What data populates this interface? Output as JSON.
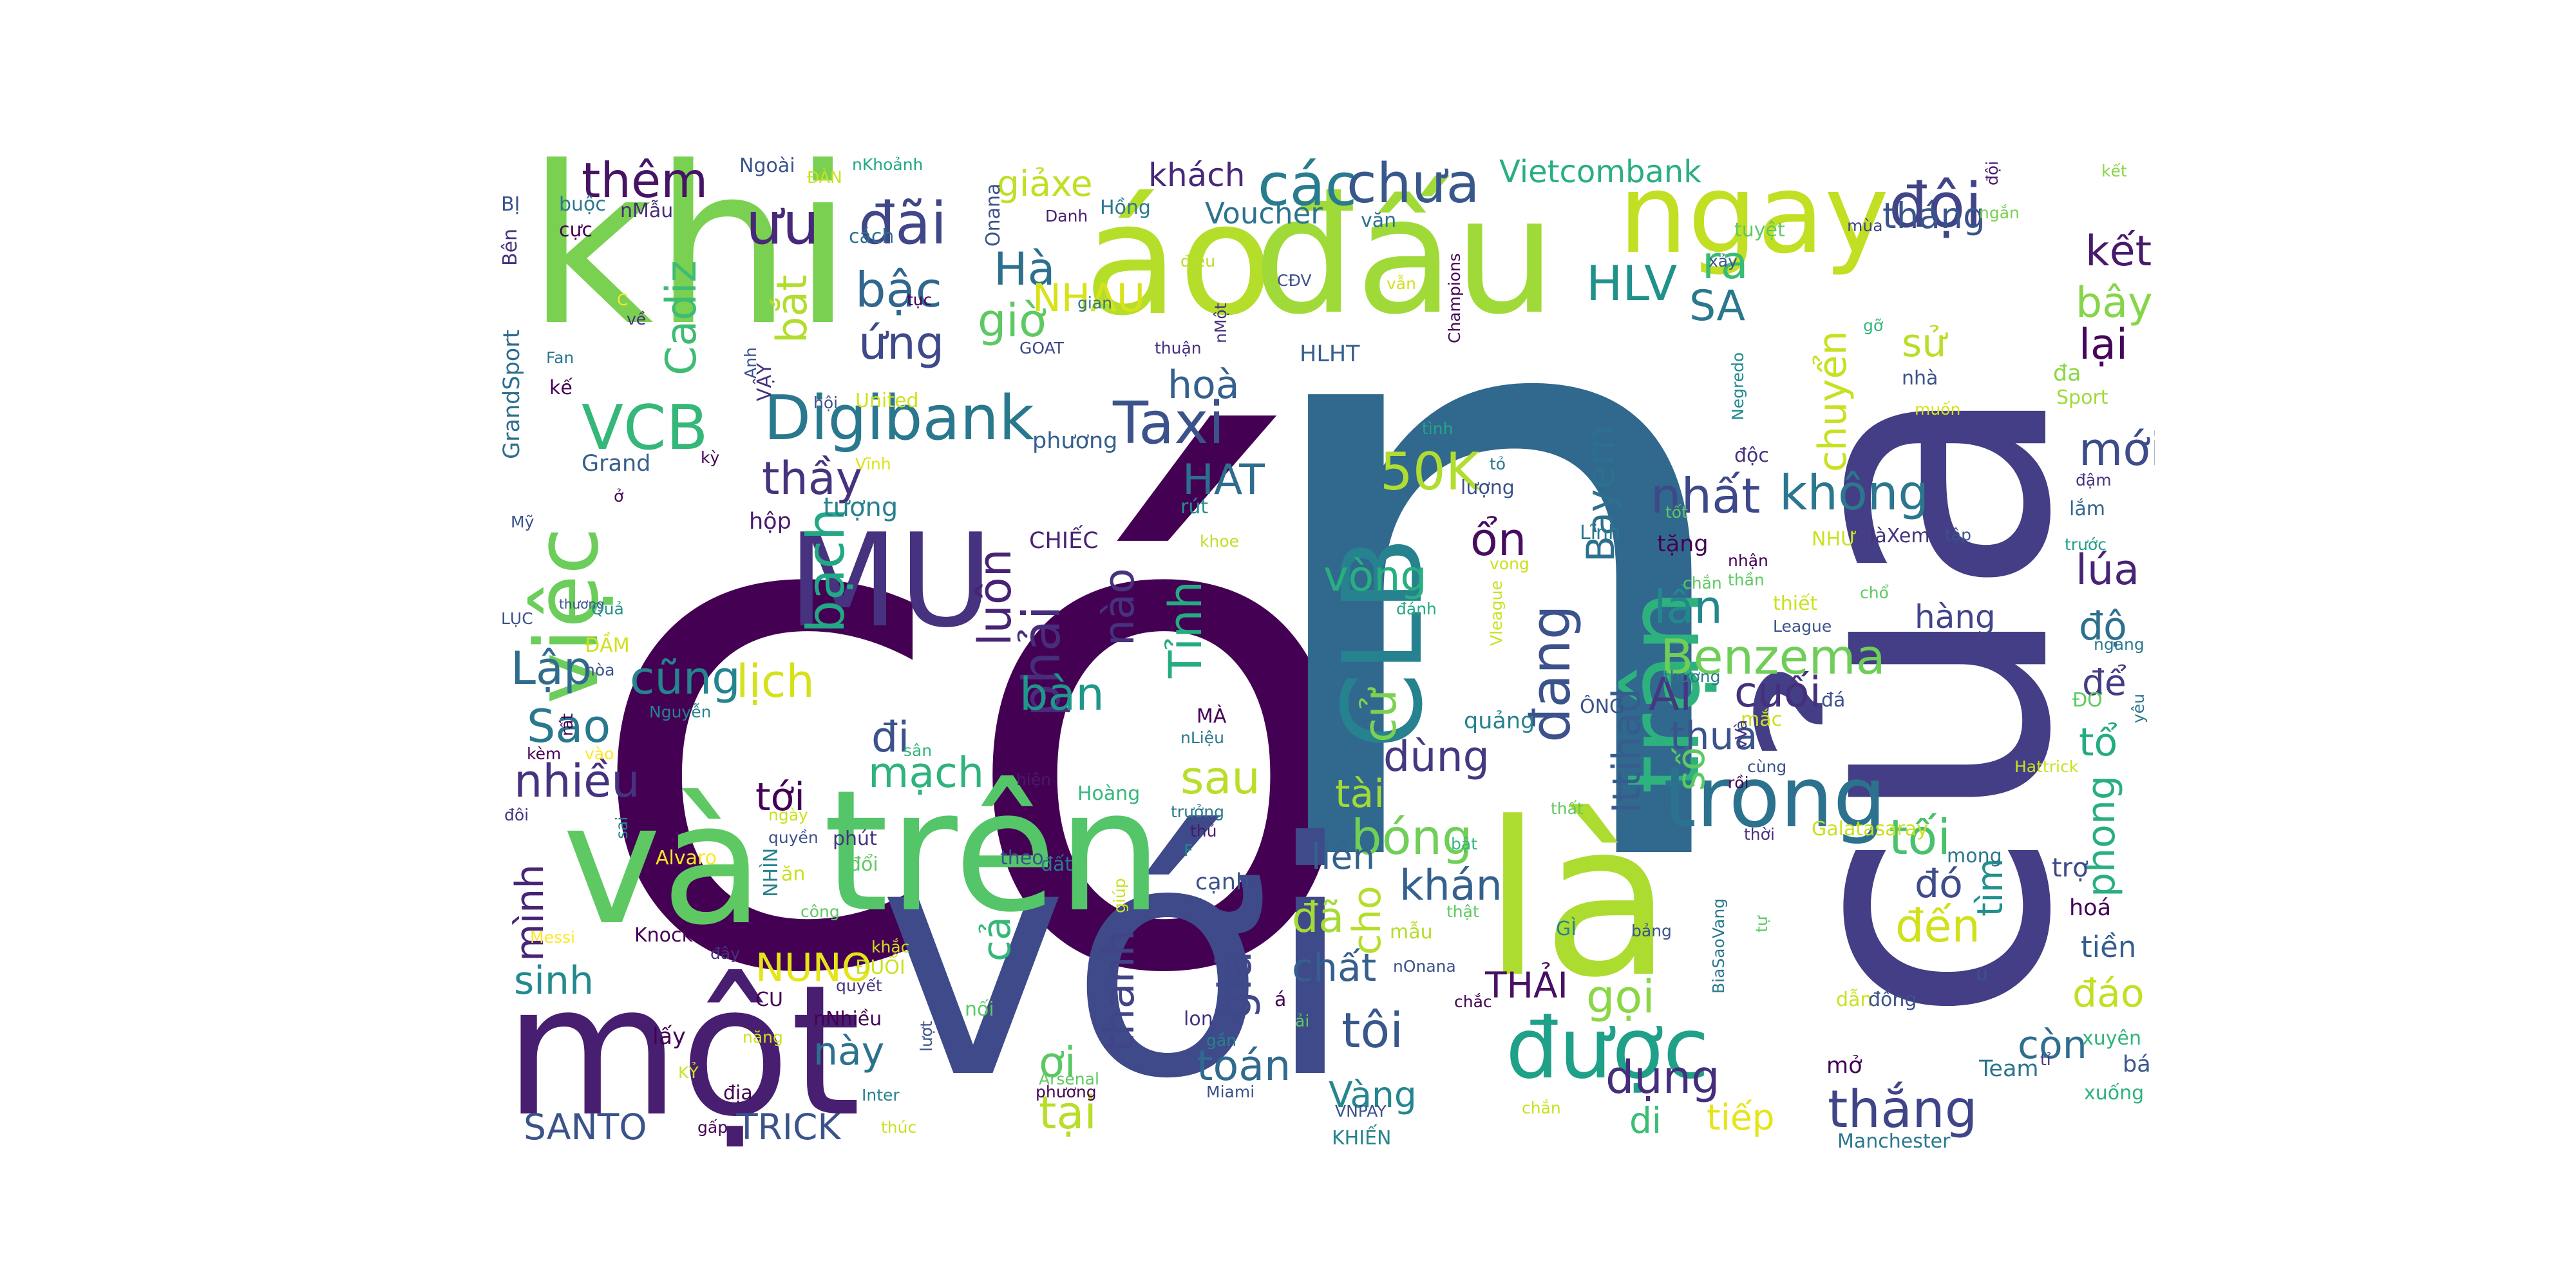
{
  "words": [
    {
      "text": "có",
      "color": "#440154"
    },
    {
      "text": "n",
      "color": "#31688e"
    },
    {
      "text": "với",
      "color": "#3e4a89"
    },
    {
      "text": "của",
      "color": "#433e85"
    },
    {
      "text": "khi",
      "color": "#7ad151"
    },
    {
      "text": "áo",
      "color": "#b5de2b"
    },
    {
      "text": "đấu",
      "color": "#a0da39"
    },
    {
      "text": "ngay",
      "color": "#c2df23"
    },
    {
      "text": "một",
      "color": "#481f70"
    },
    {
      "text": "và",
      "color": "#5ec962"
    },
    {
      "text": "trên",
      "color": "#54c568"
    },
    {
      "text": "là",
      "color": "#addc30"
    },
    {
      "text": "MU",
      "color": "#46327e"
    },
    {
      "text": "CLB",
      "color": "#26828e"
    },
    {
      "text": "trận",
      "color": "#2db27d"
    },
    {
      "text": "trong",
      "color": "#2c728e"
    },
    {
      "text": "được",
      "color": "#1fa088"
    },
    {
      "text": "việc",
      "color": "#6ccd5a"
    },
    {
      "text": "Digibank",
      "color": "#2a788e"
    },
    {
      "text": "VCB",
      "color": "#35b779"
    },
    {
      "text": "Taxi",
      "color": "#3b528b"
    },
    {
      "text": "các",
      "color": "#287c8e"
    },
    {
      "text": "chưa",
      "color": "#38588c"
    },
    {
      "text": "đội",
      "color": "#414487"
    },
    {
      "text": "HLV",
      "color": "#21918c"
    },
    {
      "text": "ưu",
      "color": "#482878"
    },
    {
      "text": "đãi",
      "color": "#3f4788"
    },
    {
      "text": "thêm",
      "color": "#471365"
    },
    {
      "text": "bậc",
      "color": "#31678e"
    },
    {
      "text": "ứng",
      "color": "#3e4989"
    },
    {
      "text": "Hà",
      "color": "#2e6f8e"
    },
    {
      "text": "giờ",
      "color": "#5ec962"
    },
    {
      "text": "Cadiz",
      "color": "#3fbc73"
    },
    {
      "text": "bắt",
      "color": "#b2dd2d"
    },
    {
      "text": "NHAU",
      "color": "#d8e219"
    },
    {
      "text": "50K",
      "color": "#b0dd2f"
    },
    {
      "text": "HAT",
      "color": "#2e6e8e"
    },
    {
      "text": "hoà",
      "color": "#355f8d"
    },
    {
      "text": "thầy",
      "color": "#46337e"
    },
    {
      "text": "Lập",
      "color": "#2f6c8e"
    },
    {
      "text": "Sao",
      "color": "#2a788e"
    },
    {
      "text": "cũng",
      "color": "#25848e"
    },
    {
      "text": "lịch",
      "color": "#d5e21a"
    },
    {
      "text": "bạch",
      "color": "#22a884"
    },
    {
      "text": "luôn",
      "color": "#482374"
    },
    {
      "text": "phải",
      "color": "#472d7b"
    },
    {
      "text": "nào",
      "color": "#4e02bb"
    },
    {
      "text": "bàn",
      "color": "#1f978b"
    },
    {
      "text": "Tỉnh",
      "color": "#25ab82"
    },
    {
      "text": "vòng",
      "color": "#29af7f"
    },
    {
      "text": "cử",
      "color": "#7cd250"
    },
    {
      "text": "đang",
      "color": "#3b528b"
    },
    {
      "text": "Benzema",
      "color": "#6ece58"
    },
    {
      "text": "lần",
      "color": "#23888e"
    },
    {
      "text": "nhất",
      "color": "#3e4989"
    },
    {
      "text": "không",
      "color": "#2a778e"
    },
    {
      "text": "Bayern",
      "color": "#2d708e"
    },
    {
      "text": "chuyển",
      "color": "#c8e020"
    },
    {
      "text": "lúa",
      "color": "#482475"
    },
    {
      "text": "kết",
      "color": "#481a6c"
    },
    {
      "text": "bây",
      "color": "#86d549"
    },
    {
      "text": "lại",
      "color": "#450559"
    },
    {
      "text": "mới",
      "color": "#3e4c8a"
    },
    {
      "text": "sử",
      "color": "#b8de29"
    },
    {
      "text": "SA",
      "color": "#2a778e"
    },
    {
      "text": "ra",
      "color": "#3bbb75"
    },
    {
      "text": "tháng",
      "color": "#3a548c"
    },
    {
      "text": "Voucher",
      "color": "#2c738e"
    },
    {
      "text": "khách",
      "color": "#482878"
    },
    {
      "text": "Vietcombank",
      "color": "#29af7f"
    },
    {
      "text": "giảxe",
      "color": "#c0df25"
    },
    {
      "text": "Al",
      "color": "#453781"
    },
    {
      "text": "cuối",
      "color": "#46307e"
    },
    {
      "text": "thua",
      "color": "#3a548c"
    },
    {
      "text": "Ittihad",
      "color": "#365c8d"
    },
    {
      "text": "số",
      "color": "#5cc863"
    },
    {
      "text": "tối",
      "color": "#4ac16d"
    },
    {
      "text": "đó",
      "color": "#3e4c8a"
    },
    {
      "text": "đến",
      "color": "#d0e11c"
    },
    {
      "text": "tìm",
      "color": "#21918c"
    },
    {
      "text": "phong",
      "color": "#29af7f"
    },
    {
      "text": "tổ",
      "color": "#25ab82"
    },
    {
      "text": "để",
      "color": "#433d84"
    },
    {
      "text": "độ",
      "color": "#2d708e"
    },
    {
      "text": "hàng",
      "color": "#414487"
    },
    {
      "text": "dùng",
      "color": "#453781"
    },
    {
      "text": "ổn",
      "color": "#470d60"
    },
    {
      "text": "tài",
      "color": "#a2da37"
    },
    {
      "text": "bóng",
      "color": "#70cf57"
    },
    {
      "text": "cho",
      "color": "#b5de2b"
    },
    {
      "text": "khán",
      "color": "#34618d"
    },
    {
      "text": "liên",
      "color": "#33628d"
    },
    {
      "text": "đã",
      "color": "#a5db36"
    },
    {
      "text": "sau",
      "color": "#b8de29"
    },
    {
      "text": "mạch",
      "color": "#2eb37c"
    },
    {
      "text": "tới",
      "color": "#440154"
    },
    {
      "text": "đi",
      "color": "#3b528b"
    },
    {
      "text": "nhiều",
      "color": "#46327e"
    },
    {
      "text": "mình",
      "color": "#482475"
    },
    {
      "text": "sinh",
      "color": "#23898e"
    },
    {
      "text": "NUNO",
      "color": "#e5e419"
    },
    {
      "text": "cả",
      "color": "#35b779"
    },
    {
      "text": "này",
      "color": "#2c728e"
    },
    {
      "text": "giá",
      "color": "#3f4889"
    },
    {
      "text": "thanh",
      "color": "#414487"
    },
    {
      "text": "chất",
      "color": "#355f8d"
    },
    {
      "text": "tôi",
      "color": "#38588c"
    },
    {
      "text": "THẢI",
      "color": "#471063"
    },
    {
      "text": "gọi",
      "color": "#8bd646"
    },
    {
      "text": "Vàng",
      "color": "#24868e"
    },
    {
      "text": "ơi",
      "color": "#5ac864"
    },
    {
      "text": "toán",
      "color": "#306a8e"
    },
    {
      "text": "tại",
      "color": "#b8de29"
    },
    {
      "text": "dụng",
      "color": "#472e7c"
    },
    {
      "text": "thắng",
      "color": "#404588"
    },
    {
      "text": "còn",
      "color": "#2e6e8e"
    },
    {
      "text": "đáo",
      "color": "#c2df23"
    },
    {
      "text": "tiếp",
      "color": "#e7e419"
    },
    {
      "text": "di",
      "color": "#3dbc74"
    },
    {
      "text": "SANTO",
      "color": "#3a538b"
    },
    {
      "text": "TRICK",
      "color": "#3a538b"
    },
    {
      "text": "tiền",
      "color": "#355e8d"
    },
    {
      "text": "trợ",
      "color": "#3e4989"
    },
    {
      "text": "hoá",
      "color": "#440154"
    },
    {
      "text": "Team",
      "color": "#2b748e"
    },
    {
      "text": "bá",
      "color": "#39568c"
    },
    {
      "text": "xuyên",
      "color": "#2fb47c"
    },
    {
      "text": "xuống",
      "color": "#2db27d"
    },
    {
      "text": "Manchester",
      "color": "#2a778e"
    },
    {
      "text": "mở",
      "color": "#440154"
    },
    {
      "text": "Grand",
      "color": "#355f8d"
    },
    {
      "text": "GrandSport",
      "color": "#2e6e8e"
    },
    {
      "text": "Bên",
      "color": "#46327e"
    },
    {
      "text": "BỊ",
      "color": "#3b528b"
    },
    {
      "text": "buộc",
      "color": "#2a788e"
    },
    {
      "text": "cực",
      "color": "#440154"
    },
    {
      "text": "nMẫu",
      "color": "#472c7a"
    },
    {
      "text": "Ngoài",
      "color": "#3b528b"
    },
    {
      "text": "ĐÀN",
      "color": "#cae11f"
    },
    {
      "text": "nKhoảnh",
      "color": "#22a884"
    },
    {
      "text": "cách",
      "color": "#2d708e"
    },
    {
      "text": "tục",
      "color": "#440154"
    },
    {
      "text": "Onana",
      "color": "#3b528b"
    },
    {
      "text": "Danh",
      "color": "#481f70"
    },
    {
      "text": "Hồng",
      "color": "#2a788e"
    },
    {
      "text": "điều",
      "color": "#b8de29"
    },
    {
      "text": "gian",
      "color": "#2a788e"
    },
    {
      "text": "GOAT",
      "color": "#3e4989"
    },
    {
      "text": "nMột",
      "color": "#46327e"
    },
    {
      "text": "thuận",
      "color": "#46307e"
    },
    {
      "text": "CĐV",
      "color": "#3b528b"
    },
    {
      "text": "vẫn",
      "color": "#d0e11c"
    },
    {
      "text": "HLHT",
      "color": "#355f8d"
    },
    {
      "text": "văn",
      "color": "#2d708e"
    },
    {
      "text": "Champions",
      "color": "#440154"
    },
    {
      "text": "mùa",
      "color": "#404688"
    },
    {
      "text": "tuyệt",
      "color": "#5ec962"
    },
    {
      "text": "xảy",
      "color": "#3b528b"
    },
    {
      "text": "ngắn",
      "color": "#7ad151"
    },
    {
      "text": "kết",
      "color": "#8bd646"
    },
    {
      "text": "đội",
      "color": "#481a6c"
    },
    {
      "text": "Negredo",
      "color": "#23898e"
    },
    {
      "text": "gỡ",
      "color": "#35b779"
    },
    {
      "text": "muốn",
      "color": "#d5e21a"
    },
    {
      "text": "nhà",
      "color": "#3b528b"
    },
    {
      "text": "đa",
      "color": "#8bd646"
    },
    {
      "text": "Sport",
      "color": "#9fda3a"
    },
    {
      "text": "Fan",
      "color": "#2a788e"
    },
    {
      "text": "kế",
      "color": "#440154"
    },
    {
      "text": "C",
      "color": "#fde725"
    },
    {
      "text": "về",
      "color": "#46307e"
    },
    {
      "text": "Anh",
      "color": "#3b528b"
    },
    {
      "text": "VẬY",
      "color": "#46327e"
    },
    {
      "text": "United",
      "color": "#d0e11c"
    },
    {
      "text": "hội",
      "color": "#3b528b"
    },
    {
      "text": "kỳ",
      "color": "#440154"
    },
    {
      "text": "Vĩnh",
      "color": "#dde318"
    },
    {
      "text": "phương",
      "color": "#355f8d"
    },
    {
      "text": "tượng",
      "color": "#26828e"
    },
    {
      "text": "Mỹ",
      "color": "#3b528b"
    },
    {
      "text": "ở",
      "color": "#440154"
    },
    {
      "text": "hộp",
      "color": "#481a6c"
    },
    {
      "text": "rút",
      "color": "#21918c"
    },
    {
      "text": "khoe",
      "color": "#bddf26"
    },
    {
      "text": "CHIẾC",
      "color": "#482475"
    },
    {
      "text": "lượng",
      "color": "#3b528b"
    },
    {
      "text": "tỏ",
      "color": "#2a788e"
    },
    {
      "text": "tình",
      "color": "#22a884"
    },
    {
      "text": "độc",
      "color": "#46307e"
    },
    {
      "text": "tốt",
      "color": "#5ec962"
    },
    {
      "text": "tặng",
      "color": "#440154"
    },
    {
      "text": "Lĩnh",
      "color": "#2a788e"
    },
    {
      "text": "NHƯ",
      "color": "#cae11f"
    },
    {
      "text": "làXem",
      "color": "#46327e"
    },
    {
      "text": "tập",
      "color": "#3b528b"
    },
    {
      "text": "lắm",
      "color": "#31688e"
    },
    {
      "text": "đậm",
      "color": "#46327e"
    },
    {
      "text": "trước",
      "color": "#1f9f88"
    },
    {
      "text": "ngang",
      "color": "#2a788e"
    },
    {
      "text": "nhận",
      "color": "#440154"
    },
    {
      "text": "thần",
      "color": "#5ec962"
    },
    {
      "text": "chắn",
      "color": "#5ec962"
    },
    {
      "text": "thiết",
      "color": "#cae11f"
    },
    {
      "text": "chổ",
      "color": "#5ec962"
    },
    {
      "text": "League",
      "color": "#3b528b"
    },
    {
      "text": "LỤC",
      "color": "#3b528b"
    },
    {
      "text": "thương",
      "color": "#3b528b"
    },
    {
      "text": "Quả",
      "color": "#21918c"
    },
    {
      "text": "ĐẦM",
      "color": "#d0e11c"
    },
    {
      "text": "hòa",
      "color": "#3b528b"
    },
    {
      "text": "Nguyễn",
      "color": "#26828e"
    },
    {
      "text": "rất",
      "color": "#440154"
    },
    {
      "text": "kèm",
      "color": "#440154"
    },
    {
      "text": "vào",
      "color": "#fde725"
    },
    {
      "text": "MÀ",
      "color": "#440154"
    },
    {
      "text": "sân",
      "color": "#35b779"
    },
    {
      "text": "nLiệu",
      "color": "#2a788e"
    },
    {
      "text": "vong",
      "color": "#cae11f"
    },
    {
      "text": "đánh",
      "color": "#22a884"
    },
    {
      "text": "Vleague",
      "color": "#cae11f"
    },
    {
      "text": "quảng",
      "color": "#26828e"
    },
    {
      "text": "ÔNG",
      "color": "#3b528b"
    },
    {
      "text": "thương",
      "color": "#2a788e"
    },
    {
      "text": "mắc",
      "color": "#cae11f"
    },
    {
      "text": "đá",
      "color": "#3b528b"
    },
    {
      "text": "ĐƠ",
      "color": "#5ec962"
    },
    {
      "text": "yêu",
      "color": "#2a788e"
    },
    {
      "text": "Hattrick",
      "color": "#cae11f"
    },
    {
      "text": "vVà",
      "color": "#46327e"
    },
    {
      "text": "cùng",
      "color": "#3b528b"
    },
    {
      "text": "rồi",
      "color": "#440154"
    },
    {
      "text": "thời",
      "color": "#46307e"
    },
    {
      "text": "Galatasaray",
      "color": "#cae11f"
    },
    {
      "text": "mong",
      "color": "#2a788e"
    },
    {
      "text": "thất",
      "color": "#5ec962"
    },
    {
      "text": "bật",
      "color": "#35b779"
    },
    {
      "text": "hiện",
      "color": "#481a6c"
    },
    {
      "text": "Hoàng",
      "color": "#35b779"
    },
    {
      "text": "trưởng",
      "color": "#2a788e"
    },
    {
      "text": "thủ",
      "color": "#481a6c"
    },
    {
      "text": "F",
      "color": "#26828e"
    },
    {
      "text": "cạnh",
      "color": "#3b528b"
    },
    {
      "text": "giúp",
      "color": "#cae11f"
    },
    {
      "text": "ngày",
      "color": "#cae11f"
    },
    {
      "text": "quyền",
      "color": "#3b528b"
    },
    {
      "text": "phút",
      "color": "#46327e"
    },
    {
      "text": "đổi",
      "color": "#5ec962"
    },
    {
      "text": "theo",
      "color": "#3b528b"
    },
    {
      "text": "đất",
      "color": "#2a788e"
    },
    {
      "text": "NHÌN",
      "color": "#26828e"
    },
    {
      "text": "Alvaro",
      "color": "#fde725"
    },
    {
      "text": "ăn",
      "color": "#cae11f"
    },
    {
      "text": "đôi",
      "color": "#46327e"
    },
    {
      "text": "sai",
      "color": "#26828e"
    },
    {
      "text": "công",
      "color": "#5ec962"
    },
    {
      "text": "Knock",
      "color": "#440154"
    },
    {
      "text": "đây",
      "color": "#46327e"
    },
    {
      "text": "Messi",
      "color": "#fde725"
    },
    {
      "text": "m",
      "color": "#440154"
    },
    {
      "text": "khắc",
      "color": "#cae11f"
    },
    {
      "text": "ĐUỔI",
      "color": "#cae11f"
    },
    {
      "text": "quyết",
      "color": "#46327e"
    },
    {
      "text": "CU",
      "color": "#440154"
    },
    {
      "text": "nNhiều",
      "color": "#440154"
    },
    {
      "text": "lượt",
      "color": "#3b528b"
    },
    {
      "text": "nối",
      "color": "#5ec962"
    },
    {
      "text": "lấy",
      "color": "#440154"
    },
    {
      "text": "năng",
      "color": "#cae11f"
    },
    {
      "text": "KỶ",
      "color": "#cae11f"
    },
    {
      "text": "địa",
      "color": "#440154"
    },
    {
      "text": "Inter",
      "color": "#26828e"
    },
    {
      "text": "gấp",
      "color": "#440154"
    },
    {
      "text": "thúc",
      "color": "#cae11f"
    },
    {
      "text": "Arsenal",
      "color": "#5ec962"
    },
    {
      "text": "phương",
      "color": "#440154"
    },
    {
      "text": "mẫu",
      "color": "#b5de2b"
    },
    {
      "text": "thật",
      "color": "#5ec962"
    },
    {
      "text": "GÌ",
      "color": "#26828e"
    },
    {
      "text": "bảng",
      "color": "#3b528b"
    },
    {
      "text": "nOnana",
      "color": "#3b528b"
    },
    {
      "text": "chắc",
      "color": "#440154"
    },
    {
      "text": "lon",
      "color": "#46327e"
    },
    {
      "text": "gần",
      "color": "#26828e"
    },
    {
      "text": "á",
      "color": "#440154"
    },
    {
      "text": "ải",
      "color": "#5ec962"
    },
    {
      "text": "Miami",
      "color": "#3b528b"
    },
    {
      "text": "VNPAY",
      "color": "#3b528b"
    },
    {
      "text": "KHIẾN",
      "color": "#26828e"
    },
    {
      "text": "chắn",
      "color": "#cae11f"
    },
    {
      "text": "BiaSaoVang",
      "color": "#2a788e"
    },
    {
      "text": "tự",
      "color": "#5ec962"
    },
    {
      "text": "dẫn",
      "color": "#cae11f"
    },
    {
      "text": "đồng",
      "color": "#3b528b"
    },
    {
      "text": "u",
      "color": "#3b528b"
    },
    {
      "text": "tỉ",
      "color": "#46327e"
    }
  ]
}
